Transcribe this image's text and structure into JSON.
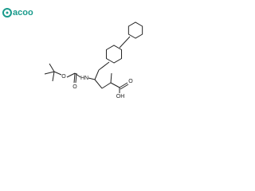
{
  "logo": {
    "text": "acoo"
  },
  "atoms": [
    {
      "label": "O"
    },
    {
      "label": "O"
    },
    {
      "label": "HN"
    },
    {
      "label": "O"
    },
    {
      "label": "OH"
    }
  ]
}
